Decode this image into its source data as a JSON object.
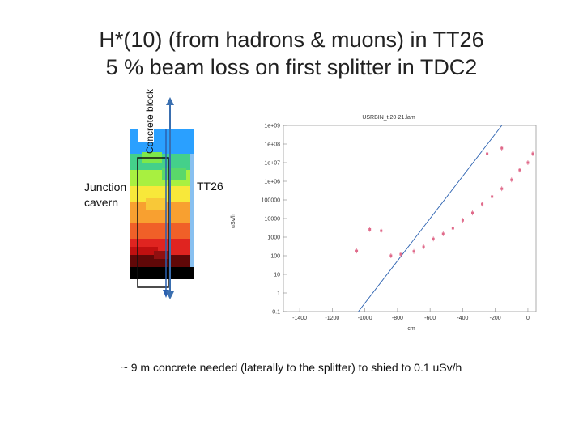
{
  "slide": {
    "title_line1": "H*(10) (from hadrons & muons) in TT26",
    "title_line2": "5 % beam loss on first splitter in TDC2",
    "labels": {
      "junction_line1": "Junction",
      "junction_line2": "cavern",
      "concrete_block": "Concrete block",
      "tt26": "TT26"
    },
    "note": "~ 9 m concrete needed (laterally to the splitter) to shied to 0.1 uSv/h"
  },
  "chart_data": {
    "type": "scatter",
    "title": "USRBIN_t:20-21.lam",
    "xlabel": "cm",
    "ylabel": "uSv/h",
    "log_y": true,
    "xlim": [
      -1500,
      50
    ],
    "ylim_exponents": [
      -1,
      9
    ],
    "x_ticks": [
      "-1400",
      "-1200",
      "-1000",
      "-800",
      "-600",
      "-400",
      "-200",
      "0"
    ],
    "y_ticks": [
      "0.1",
      "1",
      "10",
      "100",
      "1000",
      "10000",
      "100000",
      "1e+06",
      "1e+07",
      "1e+08",
      "1e+09"
    ],
    "points": [
      {
        "x": -1050,
        "y": 180
      },
      {
        "x": -970,
        "y": 2600
      },
      {
        "x": -900,
        "y": 2200
      },
      {
        "x": -840,
        "y": 100
      },
      {
        "x": -780,
        "y": 120
      },
      {
        "x": -700,
        "y": 170
      },
      {
        "x": -640,
        "y": 300
      },
      {
        "x": -580,
        "y": 800
      },
      {
        "x": -520,
        "y": 1500
      },
      {
        "x": -460,
        "y": 3000
      },
      {
        "x": -400,
        "y": 8000
      },
      {
        "x": -340,
        "y": 20000
      },
      {
        "x": -280,
        "y": 60000
      },
      {
        "x": -220,
        "y": 150000
      },
      {
        "x": -160,
        "y": 400000
      },
      {
        "x": -100,
        "y": 1200000
      },
      {
        "x": -50,
        "y": 4000000
      },
      {
        "x": 0,
        "y": 10000000
      },
      {
        "x": 30,
        "y": 30000000
      },
      {
        "x": -250,
        "y": 30000000
      },
      {
        "x": -160,
        "y": 60000000
      }
    ],
    "fit_line": {
      "x": [
        -1040,
        -160
      ],
      "y": [
        0.1,
        1000000000
      ]
    },
    "colors": {
      "points": "#e06a8a",
      "line": "#2a60b0"
    }
  }
}
